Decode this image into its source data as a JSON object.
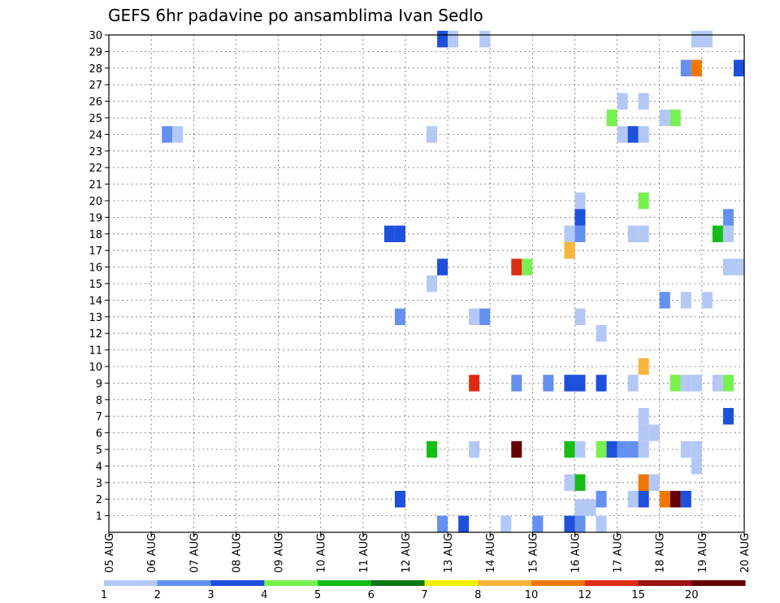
{
  "chart_data": {
    "type": "heatmap",
    "title": "GEFS 6hr padavine po ansamblima Ivan Sedlo",
    "x_tick_labels": [
      "05 AUG",
      "06 AUG",
      "07 AUG",
      "08 AUG",
      "09 AUG",
      "10 AUG",
      "11 AUG",
      "12 AUG",
      "13 AUG",
      "14 AUG",
      "15 AUG",
      "16 AUG",
      "17 AUG",
      "18 AUG",
      "19 AUG",
      "20 AUG"
    ],
    "xlim": [
      0,
      15
    ],
    "ylim": [
      0,
      30
    ],
    "y_tick_labels": [
      "1",
      "2",
      "3",
      "4",
      "5",
      "6",
      "7",
      "8",
      "9",
      "10",
      "11",
      "12",
      "13",
      "14",
      "15",
      "16",
      "17",
      "18",
      "19",
      "20",
      "21",
      "22",
      "23",
      "24",
      "25",
      "26",
      "27",
      "28",
      "29",
      "30"
    ],
    "grid": true,
    "color_scale": {
      "labels": [
        "1",
        "2",
        "3",
        "4",
        "5",
        "6",
        "7",
        "8",
        "10",
        "12",
        "15",
        "20"
      ],
      "colors": [
        "#b4c8f5",
        "#6490f0",
        "#1e50dc",
        "#78f050",
        "#14be14",
        "#0a7814",
        "#f0f000",
        "#fab43c",
        "#f07800",
        "#dc2d14",
        "#a01414",
        "#640000"
      ]
    },
    "cells": [
      {
        "x": 7.875,
        "y": 0.5,
        "v": 2
      },
      {
        "x": 8.375,
        "y": 0.5,
        "v": 3
      },
      {
        "x": 9.375,
        "y": 0.5,
        "v": 1
      },
      {
        "x": 10.125,
        "y": 0.5,
        "v": 2
      },
      {
        "x": 10.875,
        "y": 0.5,
        "v": 3
      },
      {
        "x": 11.125,
        "y": 0.5,
        "v": 2
      },
      {
        "x": 11.625,
        "y": 0.5,
        "v": 1
      },
      {
        "x": 11.125,
        "y": 1.5,
        "v": 1
      },
      {
        "x": 11.375,
        "y": 1.5,
        "v": 1
      },
      {
        "x": 6.875,
        "y": 2,
        "v": 3
      },
      {
        "x": 11.625,
        "y": 2,
        "v": 2
      },
      {
        "x": 12.375,
        "y": 2,
        "v": 1
      },
      {
        "x": 12.625,
        "y": 2,
        "v": 3
      },
      {
        "x": 13.125,
        "y": 2,
        "v": 10
      },
      {
        "x": 13.375,
        "y": 2,
        "v": 20
      },
      {
        "x": 13.625,
        "y": 2,
        "v": 3
      },
      {
        "x": 10.875,
        "y": 3,
        "v": 1
      },
      {
        "x": 11.125,
        "y": 3,
        "v": 5
      },
      {
        "x": 12.625,
        "y": 3,
        "v": 10
      },
      {
        "x": 12.875,
        "y": 3,
        "v": 1
      },
      {
        "x": 13.875,
        "y": 4,
        "v": 1
      },
      {
        "x": 7.625,
        "y": 5,
        "v": 5
      },
      {
        "x": 8.625,
        "y": 5,
        "v": 1
      },
      {
        "x": 9.625,
        "y": 5,
        "v": 20
      },
      {
        "x": 10.875,
        "y": 5,
        "v": 5
      },
      {
        "x": 11.125,
        "y": 5,
        "v": 1
      },
      {
        "x": 11.625,
        "y": 5,
        "v": 4
      },
      {
        "x": 11.875,
        "y": 5,
        "v": 3
      },
      {
        "x": 12.125,
        "y": 5,
        "v": 2
      },
      {
        "x": 12.375,
        "y": 5,
        "v": 2
      },
      {
        "x": 12.625,
        "y": 5,
        "v": 1
      },
      {
        "x": 13.625,
        "y": 5,
        "v": 1
      },
      {
        "x": 13.875,
        "y": 5,
        "v": 1
      },
      {
        "x": 12.625,
        "y": 6,
        "v": 1
      },
      {
        "x": 12.875,
        "y": 6,
        "v": 1
      },
      {
        "x": 12.625,
        "y": 7,
        "v": 1
      },
      {
        "x": 14.625,
        "y": 7,
        "v": 3
      },
      {
        "x": 8.625,
        "y": 9,
        "v": 12
      },
      {
        "x": 9.625,
        "y": 9,
        "v": 2
      },
      {
        "x": 10.375,
        "y": 9,
        "v": 2
      },
      {
        "x": 10.875,
        "y": 9,
        "v": 3
      },
      {
        "x": 11.125,
        "y": 9,
        "v": 3
      },
      {
        "x": 11.625,
        "y": 9,
        "v": 3
      },
      {
        "x": 12.375,
        "y": 9,
        "v": 1
      },
      {
        "x": 13.375,
        "y": 9,
        "v": 4
      },
      {
        "x": 13.625,
        "y": 9,
        "v": 1
      },
      {
        "x": 13.875,
        "y": 9,
        "v": 1
      },
      {
        "x": 14.375,
        "y": 9,
        "v": 1
      },
      {
        "x": 14.625,
        "y": 9,
        "v": 4
      },
      {
        "x": 12.625,
        "y": 10,
        "v": 8
      },
      {
        "x": 11.625,
        "y": 12,
        "v": 1
      },
      {
        "x": 6.875,
        "y": 13,
        "v": 2
      },
      {
        "x": 8.625,
        "y": 13,
        "v": 1
      },
      {
        "x": 8.875,
        "y": 13,
        "v": 2
      },
      {
        "x": 11.125,
        "y": 13,
        "v": 1
      },
      {
        "x": 13.125,
        "y": 14,
        "v": 2
      },
      {
        "x": 13.625,
        "y": 14,
        "v": 1
      },
      {
        "x": 14.125,
        "y": 14,
        "v": 1
      },
      {
        "x": 7.625,
        "y": 15,
        "v": 1
      },
      {
        "x": 7.875,
        "y": 16,
        "v": 3
      },
      {
        "x": 9.625,
        "y": 16,
        "v": 12
      },
      {
        "x": 9.875,
        "y": 16,
        "v": 4
      },
      {
        "x": 14.625,
        "y": 16,
        "v": 1
      },
      {
        "x": 14.875,
        "y": 16,
        "v": 1
      },
      {
        "x": 10.875,
        "y": 17,
        "v": 8
      },
      {
        "x": 6.625,
        "y": 18,
        "v": 3
      },
      {
        "x": 6.875,
        "y": 18,
        "v": 3
      },
      {
        "x": 10.875,
        "y": 18,
        "v": 1
      },
      {
        "x": 11.125,
        "y": 18,
        "v": 2
      },
      {
        "x": 12.375,
        "y": 18,
        "v": 1
      },
      {
        "x": 12.625,
        "y": 18,
        "v": 1
      },
      {
        "x": 14.375,
        "y": 18,
        "v": 5
      },
      {
        "x": 14.625,
        "y": 18,
        "v": 1
      },
      {
        "x": 11.125,
        "y": 19,
        "v": 3
      },
      {
        "x": 14.625,
        "y": 19,
        "v": 2
      },
      {
        "x": 11.125,
        "y": 20,
        "v": 1
      },
      {
        "x": 12.625,
        "y": 20,
        "v": 4
      },
      {
        "x": 1.375,
        "y": 24,
        "v": 2
      },
      {
        "x": 1.625,
        "y": 24,
        "v": 1
      },
      {
        "x": 7.625,
        "y": 24,
        "v": 1
      },
      {
        "x": 12.125,
        "y": 24,
        "v": 1
      },
      {
        "x": 12.375,
        "y": 24,
        "v": 3
      },
      {
        "x": 12.625,
        "y": 24,
        "v": 1
      },
      {
        "x": 11.875,
        "y": 25,
        "v": 4
      },
      {
        "x": 13.125,
        "y": 25,
        "v": 1
      },
      {
        "x": 13.375,
        "y": 25,
        "v": 4
      },
      {
        "x": 12.125,
        "y": 26,
        "v": 1
      },
      {
        "x": 12.625,
        "y": 26,
        "v": 1
      },
      {
        "x": 13.625,
        "y": 28,
        "v": 2
      },
      {
        "x": 13.875,
        "y": 28,
        "v": 10
      },
      {
        "x": 14.875,
        "y": 28,
        "v": 3
      },
      {
        "x": 7.875,
        "y": 29.75,
        "v": 3
      },
      {
        "x": 8.125,
        "y": 29.75,
        "v": 1
      },
      {
        "x": 8.875,
        "y": 29.75,
        "v": 1
      },
      {
        "x": 13.875,
        "y": 29.75,
        "v": 1
      },
      {
        "x": 14.125,
        "y": 29.75,
        "v": 1
      }
    ]
  }
}
